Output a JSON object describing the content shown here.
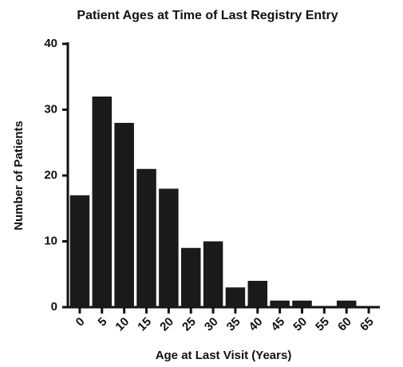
{
  "chart_data": {
    "type": "bar",
    "title": "Patient Ages at Time of Last Registry Entry",
    "xlabel": "Age at Last Visit (Years)",
    "ylabel": "Number of Patients",
    "categories": [
      "0",
      "5",
      "10",
      "15",
      "20",
      "25",
      "30",
      "35",
      "40",
      "45",
      "50",
      "55",
      "60",
      "65"
    ],
    "values": [
      17,
      32,
      28,
      21,
      18,
      9,
      10,
      3,
      4,
      1,
      1,
      0,
      1,
      0
    ],
    "color": "#1a1a1a",
    "ylim": [
      0,
      40
    ],
    "yticks": [
      0,
      10,
      20,
      30,
      40
    ],
    "grid": false
  }
}
